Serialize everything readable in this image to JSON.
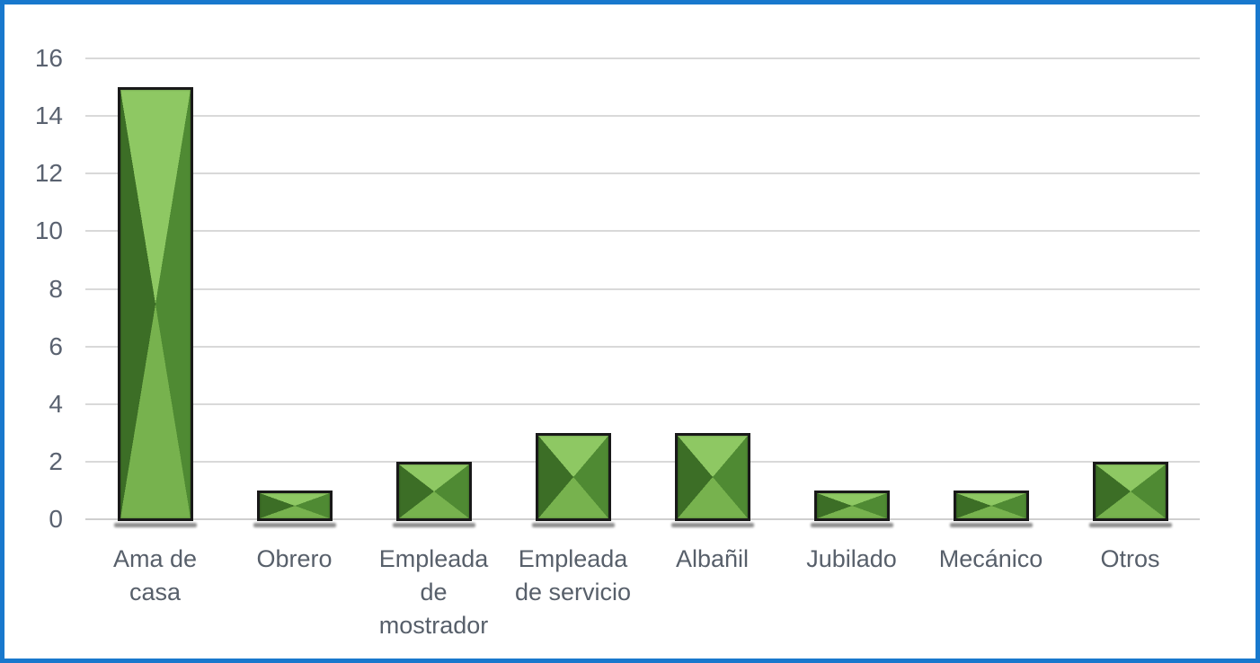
{
  "window": {
    "background": "#ffffff",
    "border_color": "#1878cd"
  },
  "chart_data": {
    "type": "bar",
    "title": "",
    "xlabel": "",
    "ylabel": "",
    "categories": [
      "Ama de casa",
      "Obrero",
      "Empleada de mostrador",
      "Empleada de servicio",
      "Albañil",
      "Jubilado",
      "Mecánico",
      "Otros"
    ],
    "category_lines": [
      [
        "Ama de",
        "casa"
      ],
      [
        "Obrero"
      ],
      [
        "Empleada",
        "de",
        "mostrador"
      ],
      [
        "Empleada",
        "de servicio"
      ],
      [
        "Albañil"
      ],
      [
        "Jubilado"
      ],
      [
        "Mecánico"
      ],
      [
        "Otros"
      ]
    ],
    "values": [
      15,
      1,
      2,
      3,
      3,
      1,
      1,
      2
    ],
    "ylim": [
      0,
      16
    ],
    "yticks": [
      0,
      2,
      4,
      6,
      8,
      10,
      12,
      14,
      16
    ],
    "grid": true,
    "legend": false,
    "gridline_color": "#d9d9d9",
    "tick_label_color": "#5a6270",
    "category_label_color": "#575f6a",
    "bar_style": {
      "outline": "#191919",
      "face_top": "#8ec863",
      "face_right": "#4f8a33",
      "face_bottom": "#77b24e",
      "face_left": "#3c6e26",
      "shadow": "rgba(48,48,48,0.55)"
    }
  }
}
